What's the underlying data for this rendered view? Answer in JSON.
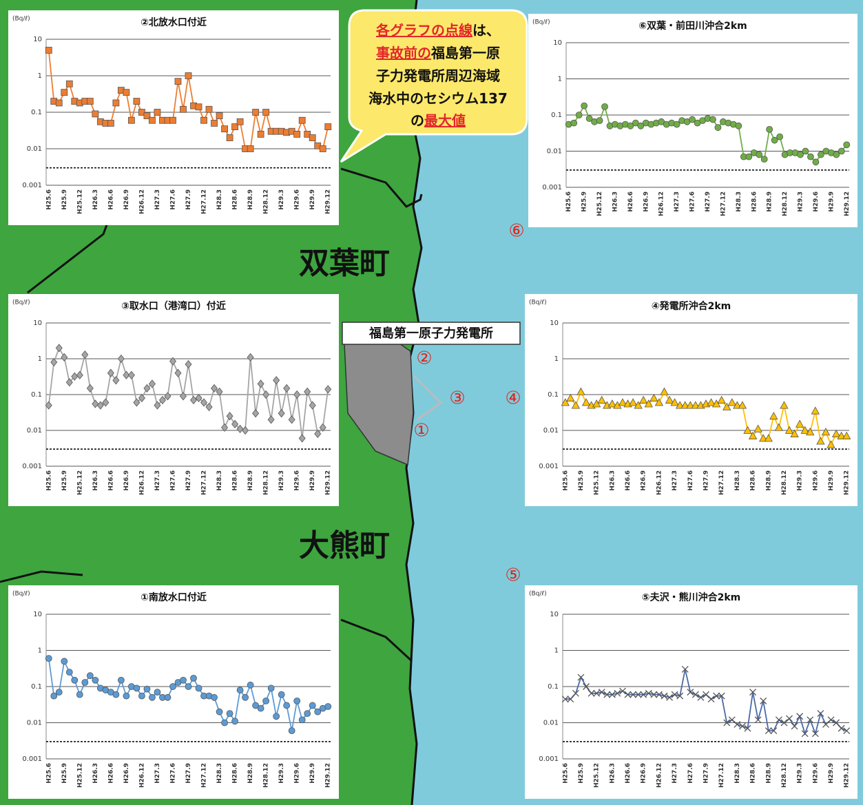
{
  "map": {
    "town_labels": [
      "双葉町",
      "大熊町"
    ],
    "plant_label": "福島第一原子力発電所",
    "station_markers": [
      "②",
      "③",
      "①",
      "⑥",
      "④",
      "⑤"
    ],
    "callout": [
      [
        {
          "text": "各グラフの点線",
          "emphasis": true
        },
        {
          "text": "は、",
          "emphasis": false
        }
      ],
      [
        {
          "text": "事故前の",
          "emphasis": true
        },
        {
          "text": "福島第一原",
          "emphasis": false
        }
      ],
      [
        {
          "text": "子力発電所周辺海域",
          "emphasis": false
        }
      ],
      [
        {
          "text": "海水中のセシウム137",
          "emphasis": false
        }
      ],
      [
        {
          "text": "の",
          "emphasis": false
        },
        {
          "text": "最大値",
          "emphasis": true
        }
      ]
    ]
  },
  "chart_data": [
    {
      "type": "line",
      "title": "②北放水口付近",
      "y_unit": "(Bq/ℓ)",
      "log_scale": true,
      "grid": true,
      "marker": "square",
      "color": "#ed7d31",
      "categories": [
        "H25.6",
        null,
        null,
        "H25.9",
        null,
        null,
        "H25.12",
        null,
        null,
        "H26.3",
        null,
        null,
        "H26.6",
        null,
        null,
        "H26.9",
        null,
        null,
        "H26.12",
        null,
        null,
        "H27.3",
        null,
        null,
        "H27.6",
        null,
        null,
        "H27.9",
        null,
        null,
        "H27.12",
        null,
        null,
        "H28.3",
        null,
        null,
        "H28.6",
        null,
        null,
        "H28.9",
        null,
        null,
        "H28.12",
        null,
        null,
        "H29.3",
        null,
        null,
        "H29.6",
        null,
        null,
        "H29.9",
        null,
        null,
        "H29.12"
      ],
      "values": [
        5,
        0.2,
        0.18,
        0.35,
        0.6,
        0.2,
        0.18,
        0.2,
        0.2,
        0.09,
        0.055,
        0.05,
        0.05,
        0.18,
        0.4,
        0.35,
        0.06,
        0.2,
        0.1,
        0.08,
        0.06,
        0.1,
        0.06,
        0.06,
        0.06,
        0.7,
        0.12,
        1,
        0.15,
        0.14,
        0.06,
        0.12,
        0.05,
        0.08,
        0.035,
        0.02,
        0.04,
        0.055,
        0.01,
        0.01,
        0.1,
        0.025,
        0.1,
        0.03,
        0.03,
        0.03,
        0.028,
        0.03,
        0.025,
        0.06,
        0.025,
        0.02,
        0.012,
        0.01,
        0.04
      ],
      "reference_line": 0.003,
      "ylim": [
        0.001,
        10
      ],
      "yticks": [
        0.001,
        0.01,
        0.1,
        1,
        10
      ]
    },
    {
      "type": "line",
      "title": "⑥双葉・前田川沖合2km",
      "y_unit": "(Bq/ℓ)",
      "log_scale": true,
      "grid": true,
      "marker": "circle",
      "color": "#70ad47",
      "categories": [
        "H25.6",
        null,
        null,
        "H25.9",
        null,
        null,
        "H25.12",
        null,
        null,
        "H26.3",
        null,
        null,
        "H26.6",
        null,
        null,
        "H26.9",
        null,
        null,
        "H26.12",
        null,
        null,
        "H27.3",
        null,
        null,
        "H27.6",
        null,
        null,
        "H27.9",
        null,
        null,
        "H27.12",
        null,
        null,
        "H28.3",
        null,
        null,
        "H28.6",
        null,
        null,
        "H28.9",
        null,
        null,
        "H28.12",
        null,
        null,
        "H29.3",
        null,
        null,
        "H29.6",
        null,
        null,
        "H29.9",
        null,
        null,
        "H29.12"
      ],
      "values": [
        0.055,
        0.06,
        0.1,
        0.18,
        0.08,
        0.065,
        0.07,
        0.17,
        0.05,
        0.055,
        0.05,
        0.055,
        0.05,
        0.06,
        0.05,
        0.06,
        0.055,
        0.06,
        0.065,
        0.055,
        0.06,
        0.055,
        0.07,
        0.065,
        0.075,
        0.06,
        0.07,
        0.08,
        0.075,
        0.045,
        0.065,
        0.06,
        0.055,
        0.05,
        0.007,
        0.007,
        0.009,
        0.008,
        0.006,
        0.04,
        0.02,
        0.025,
        0.008,
        0.009,
        0.009,
        0.008,
        0.01,
        0.007,
        0.005,
        0.008,
        0.01,
        0.009,
        0.008,
        0.01,
        0.015
      ],
      "reference_line": 0.003,
      "ylim": [
        0.001,
        10
      ],
      "yticks": [
        0.001,
        0.01,
        0.1,
        1,
        10
      ]
    },
    {
      "type": "line",
      "title": "③取水口（港湾口）付近",
      "y_unit": "(Bq/ℓ)",
      "log_scale": true,
      "grid": true,
      "marker": "diamond",
      "color": "#a5a5a5",
      "categories": [
        "H25.6",
        null,
        null,
        "H25.9",
        null,
        null,
        "H25.12",
        null,
        null,
        "H26.3",
        null,
        null,
        "H26.6",
        null,
        null,
        "H26.9",
        null,
        null,
        "H26.12",
        null,
        null,
        "H27.3",
        null,
        null,
        "H27.6",
        null,
        null,
        "H27.9",
        null,
        null,
        "H27.12",
        null,
        null,
        "H28.3",
        null,
        null,
        "H28.6",
        null,
        null,
        "H28.9",
        null,
        null,
        "H28.12",
        null,
        null,
        "H29.3",
        null,
        null,
        "H29.6",
        null,
        null,
        "H29.9",
        null,
        null,
        "H29.12"
      ],
      "values": [
        0.05,
        0.8,
        2,
        1.1,
        0.22,
        0.32,
        0.35,
        1.3,
        0.15,
        0.055,
        0.05,
        0.06,
        0.4,
        0.25,
        1,
        0.35,
        0.35,
        0.06,
        0.08,
        0.15,
        0.2,
        0.05,
        0.07,
        0.09,
        0.85,
        0.4,
        0.09,
        0.7,
        0.07,
        0.08,
        0.06,
        0.045,
        0.15,
        0.12,
        0.012,
        0.025,
        0.015,
        0.011,
        0.01,
        1.1,
        0.03,
        0.2,
        0.1,
        0.02,
        0.25,
        0.03,
        0.15,
        0.02,
        0.1,
        0.006,
        0.12,
        0.05,
        0.008,
        0.012,
        0.14
      ],
      "reference_line": 0.003,
      "ylim": [
        0.001,
        10
      ],
      "yticks": [
        0.001,
        0.01,
        0.1,
        1,
        10
      ]
    },
    {
      "type": "line",
      "title": "④発電所沖合2km",
      "y_unit": "(Bq/ℓ)",
      "log_scale": true,
      "grid": true,
      "marker": "triangle",
      "color": "#ffc000",
      "categories": [
        "H25.6",
        null,
        null,
        "H25.9",
        null,
        null,
        "H25.12",
        null,
        null,
        "H26.3",
        null,
        null,
        "H26.6",
        null,
        null,
        "H26.9",
        null,
        null,
        "H26.12",
        null,
        null,
        "H27.3",
        null,
        null,
        "H27.6",
        null,
        null,
        "H27.9",
        null,
        null,
        "H27.12",
        null,
        null,
        "H28.3",
        null,
        null,
        "H28.6",
        null,
        null,
        "H28.9",
        null,
        null,
        "H28.12",
        null,
        null,
        "H29.3",
        null,
        null,
        "H29.6",
        null,
        null,
        "H29.9",
        null,
        null,
        "H29.12"
      ],
      "values": [
        0.06,
        0.08,
        0.05,
        0.12,
        0.06,
        0.05,
        0.055,
        0.07,
        0.05,
        0.055,
        0.05,
        0.06,
        0.055,
        0.06,
        0.05,
        0.07,
        0.055,
        0.08,
        0.06,
        0.12,
        0.07,
        0.06,
        0.05,
        0.05,
        0.05,
        0.05,
        0.05,
        0.055,
        0.06,
        0.055,
        0.07,
        0.045,
        0.06,
        0.05,
        0.05,
        0.01,
        0.007,
        0.011,
        0.006,
        0.006,
        0.025,
        0.012,
        0.05,
        0.01,
        0.008,
        0.015,
        0.01,
        0.009,
        0.035,
        0.005,
        0.009,
        0.004,
        0.008,
        0.007,
        0.007
      ],
      "reference_line": 0.003,
      "ylim": [
        0.001,
        10
      ],
      "yticks": [
        0.001,
        0.01,
        0.1,
        1,
        10
      ]
    },
    {
      "type": "line",
      "title": "①南放水口付近",
      "y_unit": "(Bq/ℓ)",
      "log_scale": true,
      "grid": true,
      "marker": "circle",
      "color": "#5b9bd5",
      "categories": [
        "H25.6",
        null,
        null,
        "H25.9",
        null,
        null,
        "H25.12",
        null,
        null,
        "H26.3",
        null,
        null,
        "H26.6",
        null,
        null,
        "H26.9",
        null,
        null,
        "H26.12",
        null,
        null,
        "H27.3",
        null,
        null,
        "H27.6",
        null,
        null,
        "H27.9",
        null,
        null,
        "H27.12",
        null,
        null,
        "H28.3",
        null,
        null,
        "H28.6",
        null,
        null,
        "H28.9",
        null,
        null,
        "H28.12",
        null,
        null,
        "H29.3",
        null,
        null,
        "H29.6",
        null,
        null,
        "H29.9",
        null,
        null,
        "H29.12"
      ],
      "values": [
        0.6,
        0.055,
        0.07,
        0.5,
        0.25,
        0.15,
        0.06,
        0.13,
        0.2,
        0.15,
        0.09,
        0.08,
        0.07,
        0.06,
        0.15,
        0.055,
        0.1,
        0.09,
        0.055,
        0.085,
        0.05,
        0.07,
        0.05,
        0.05,
        0.1,
        0.13,
        0.15,
        0.1,
        0.17,
        0.09,
        0.055,
        0.055,
        0.05,
        0.02,
        0.01,
        0.018,
        0.011,
        0.08,
        0.05,
        0.11,
        0.03,
        0.025,
        0.04,
        0.09,
        0.015,
        0.06,
        0.03,
        0.006,
        0.04,
        0.012,
        0.018,
        0.03,
        0.02,
        0.025,
        0.028
      ],
      "reference_line": 0.003,
      "ylim": [
        0.001,
        10
      ],
      "yticks": [
        0.001,
        0.01,
        0.1,
        1,
        10
      ]
    },
    {
      "type": "line",
      "title": "⑤夫沢・熊川沖合2km",
      "y_unit": "(Bq/ℓ)",
      "log_scale": true,
      "grid": true,
      "marker": "x",
      "color": "#4a69a8",
      "categories": [
        "H25.6",
        null,
        null,
        "H25.9",
        null,
        null,
        "H25.12",
        null,
        null,
        "H26.3",
        null,
        null,
        "H26.6",
        null,
        null,
        "H26.9",
        null,
        null,
        "H26.12",
        null,
        null,
        "H27.3",
        null,
        null,
        "H27.6",
        null,
        null,
        "H27.9",
        null,
        null,
        "H27.12",
        null,
        null,
        "H28.3",
        null,
        null,
        "H28.6",
        null,
        null,
        "H28.9",
        null,
        null,
        "H28.12",
        null,
        null,
        "H29.3",
        null,
        null,
        "H29.6",
        null,
        null,
        "H29.9",
        null,
        null,
        "H29.12"
      ],
      "values": [
        0.045,
        0.045,
        0.065,
        0.18,
        0.1,
        0.065,
        0.065,
        0.07,
        0.06,
        0.06,
        0.065,
        0.075,
        0.06,
        0.06,
        0.06,
        0.06,
        0.065,
        0.06,
        0.06,
        0.055,
        0.05,
        0.06,
        0.055,
        0.3,
        0.07,
        0.06,
        0.05,
        0.06,
        0.045,
        0.055,
        0.055,
        0.01,
        0.012,
        0.009,
        0.008,
        0.007,
        0.07,
        0.012,
        0.04,
        0.006,
        0.006,
        0.012,
        0.01,
        0.013,
        0.008,
        0.015,
        0.005,
        0.012,
        0.005,
        0.018,
        0.009,
        0.012,
        0.01,
        0.007,
        0.006
      ],
      "reference_line": 0.003,
      "ylim": [
        0.001,
        10
      ],
      "yticks": [
        0.001,
        0.01,
        0.1,
        1,
        10
      ]
    }
  ]
}
